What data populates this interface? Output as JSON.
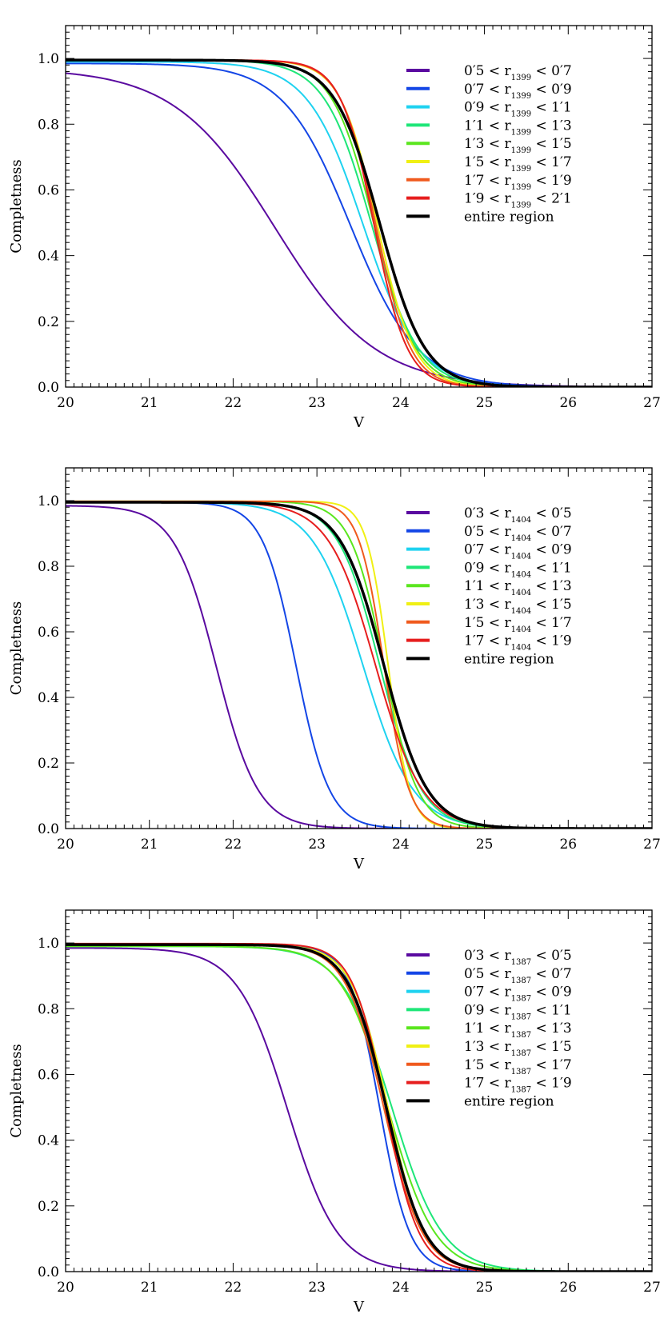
{
  "chart_data": [
    {
      "type": "line",
      "xlabel": "V",
      "ylabel": "Completness",
      "xlim": [
        20,
        27
      ],
      "ylim": [
        0,
        1.1
      ],
      "xticks": [
        "20",
        "21",
        "22",
        "23",
        "24",
        "25",
        "26",
        "27"
      ],
      "yticks": [
        "0.0",
        "0.2",
        "0.4",
        "0.6",
        "0.8",
        "1.0"
      ],
      "legend_position": "top-right",
      "series": [
        {
          "name": "0′5 < r1399 < 0′7",
          "pre": "0′5 < r",
          "sub": "1399",
          "post": "< 0′7",
          "color": "#5a0aa0",
          "width": 2,
          "v50": 22.5,
          "sigma": 0.6,
          "top": 0.97,
          "bottom": 0.0
        },
        {
          "name": "0′7 < r1399 < 0′9",
          "pre": "0′7 < r",
          "sub": "1399",
          "post": "< 0′9",
          "color": "#1446e6",
          "width": 2,
          "v50": 23.4,
          "sigma": 0.4,
          "top": 0.985,
          "bottom": 0.0
        },
        {
          "name": "0′9 < r1399 < 1′1",
          "pre": "0′9 < r",
          "sub": "1399",
          "post": "< 1′1",
          "color": "#1ed2f0",
          "width": 2,
          "v50": 23.55,
          "sigma": 0.33,
          "top": 0.99,
          "bottom": 0.0
        },
        {
          "name": "1′1 < r1399 < 1′3",
          "pre": "1′1 < r",
          "sub": "1399",
          "post": "< 1′3",
          "color": "#1ee678",
          "width": 2,
          "v50": 23.65,
          "sigma": 0.28,
          "top": 0.995,
          "bottom": 0.0
        },
        {
          "name": "1′3 < r1399 < 1′5",
          "pre": "1′3 < r",
          "sub": "1399",
          "post": "< 1′5",
          "color": "#5ae61e",
          "width": 2,
          "v50": 23.68,
          "sigma": 0.25,
          "top": 0.995,
          "bottom": 0.0
        },
        {
          "name": "1′5 < r1399 < 1′7",
          "pre": "1′5 < r",
          "sub": "1399",
          "post": "< 1′7",
          "color": "#f0f014",
          "width": 2,
          "v50": 23.72,
          "sigma": 0.22,
          "top": 0.995,
          "bottom": 0.0
        },
        {
          "name": "1′7 < r1399 < 1′9",
          "pre": "1′7 < r",
          "sub": "1399",
          "post": "< 1′9",
          "color": "#f05a1e",
          "width": 2,
          "v50": 23.7,
          "sigma": 0.21,
          "top": 0.995,
          "bottom": 0.0
        },
        {
          "name": "1′9 < r1399 < 2′1",
          "pre": "1′9 < r",
          "sub": "1399",
          "post": "< 2′1",
          "color": "#e61e1e",
          "width": 2,
          "v50": 23.68,
          "sigma": 0.2,
          "top": 0.995,
          "bottom": 0.0
        },
        {
          "name": "entire region",
          "pre": "entire region",
          "sub": "",
          "post": "",
          "color": "#000000",
          "width": 3.5,
          "v50": 23.75,
          "sigma": 0.27,
          "top": 0.995,
          "bottom": 0.0
        }
      ]
    },
    {
      "type": "line",
      "xlabel": "V",
      "ylabel": "Completness",
      "xlim": [
        20,
        27
      ],
      "ylim": [
        0,
        1.1
      ],
      "xticks": [
        "20",
        "21",
        "22",
        "23",
        "24",
        "25",
        "26",
        "27"
      ],
      "yticks": [
        "0.0",
        "0.2",
        "0.4",
        "0.6",
        "0.8",
        "1.0"
      ],
      "legend_position": "top-right",
      "series": [
        {
          "name": "0′3 < r1404 < 0′5",
          "pre": "0′3 < r",
          "sub": "1404",
          "post": "< 0′5",
          "color": "#5a0aa0",
          "width": 2,
          "v50": 21.8,
          "sigma": 0.25,
          "top": 0.985,
          "bottom": 0.0
        },
        {
          "name": "0′5 < r1404 < 0′7",
          "pre": "0′5 < r",
          "sub": "1404",
          "post": "< 0′7",
          "color": "#1446e6",
          "width": 2,
          "v50": 22.75,
          "sigma": 0.2,
          "top": 0.995,
          "bottom": 0.0
        },
        {
          "name": "0′7 < r1404 < 0′9",
          "pre": "0′7 < r",
          "sub": "1404",
          "post": "< 0′9",
          "color": "#1ed2f0",
          "width": 2,
          "v50": 23.55,
          "sigma": 0.3,
          "top": 0.995,
          "bottom": 0.0
        },
        {
          "name": "0′9 < r1404 < 1′1",
          "pre": "0′9 < r",
          "sub": "1404",
          "post": "< 1′1",
          "color": "#1ee678",
          "width": 2,
          "v50": 23.75,
          "sigma": 0.25,
          "top": 0.995,
          "bottom": 0.0
        },
        {
          "name": "1′1 < r1404 < 1′3",
          "pre": "1′1 < r",
          "sub": "1404",
          "post": "< 1′3",
          "color": "#5ae61e",
          "width": 2,
          "v50": 23.8,
          "sigma": 0.2,
          "top": 0.998,
          "bottom": 0.0
        },
        {
          "name": "1′3 < r1404 < 1′5",
          "pre": "1′3 < r",
          "sub": "1404",
          "post": "< 1′5",
          "color": "#f0f014",
          "width": 2,
          "v50": 23.85,
          "sigma": 0.13,
          "top": 0.998,
          "bottom": 0.0
        },
        {
          "name": "1′5 < r1404 < 1′7",
          "pre": "1′5 < r",
          "sub": "1404",
          "post": "< 1′7",
          "color": "#f05a1e",
          "width": 2,
          "v50": 23.8,
          "sigma": 0.15,
          "top": 0.998,
          "bottom": 0.0
        },
        {
          "name": "1′7 < r1404 < 1′9",
          "pre": "1′7 < r",
          "sub": "1404",
          "post": "< 1′9",
          "color": "#e61e1e",
          "width": 2,
          "v50": 23.7,
          "sigma": 0.28,
          "top": 0.995,
          "bottom": 0.0
        },
        {
          "name": "entire region",
          "pre": "entire region",
          "sub": "",
          "post": "",
          "color": "#000000",
          "width": 3.5,
          "v50": 23.8,
          "sigma": 0.26,
          "top": 0.995,
          "bottom": 0.0
        }
      ]
    },
    {
      "type": "line",
      "xlabel": "V",
      "ylabel": "Completness",
      "xlim": [
        20,
        27
      ],
      "ylim": [
        0,
        1.1
      ],
      "xticks": [
        "20",
        "21",
        "22",
        "23",
        "24",
        "25",
        "26",
        "27"
      ],
      "yticks": [
        "0.0",
        "0.2",
        "0.4",
        "0.6",
        "0.8",
        "1.0"
      ],
      "legend_position": "top-right",
      "series": [
        {
          "name": "0′3 < r1387 < 0′5",
          "pre": "0′3 < r",
          "sub": "1387",
          "post": "< 0′5",
          "color": "#5a0aa0",
          "width": 2,
          "v50": 22.65,
          "sigma": 0.3,
          "top": 0.985,
          "bottom": 0.0
        },
        {
          "name": "0′5 < r1387 < 0′7",
          "pre": "0′5 < r",
          "sub": "1387",
          "post": "< 0′7",
          "color": "#1446e6",
          "width": 2,
          "v50": 23.75,
          "sigma": 0.18,
          "top": 0.995,
          "bottom": 0.0
        },
        {
          "name": "0′7 < r1387 < 0′9",
          "pre": "0′7 < r",
          "sub": "1387",
          "post": "< 0′9",
          "color": "#1ed2f0",
          "width": 2,
          "v50": 23.85,
          "sigma": 0.22,
          "top": 0.995,
          "bottom": 0.0
        },
        {
          "name": "0′9 < r1387 < 1′1",
          "pre": "0′9 < r",
          "sub": "1387",
          "post": "< 1′1",
          "color": "#1ee678",
          "width": 2,
          "v50": 23.9,
          "sigma": 0.3,
          "top": 0.99,
          "bottom": 0.0
        },
        {
          "name": "1′1 < r1387 < 1′3",
          "pre": "1′1 < r",
          "sub": "1387",
          "post": "< 1′3",
          "color": "#5ae61e",
          "width": 2,
          "v50": 23.85,
          "sigma": 0.28,
          "top": 0.99,
          "bottom": 0.0
        },
        {
          "name": "1′3 < r1387 < 1′5",
          "pre": "1′3 < r",
          "sub": "1387",
          "post": "< 1′5",
          "color": "#f0f014",
          "width": 2,
          "v50": 23.85,
          "sigma": 0.22,
          "top": 0.995,
          "bottom": 0.0
        },
        {
          "name": "1′5 < r1387 < 1′7",
          "pre": "1′5 < r",
          "sub": "1387",
          "post": "< 1′7",
          "color": "#f05a1e",
          "width": 2,
          "v50": 23.8,
          "sigma": 0.23,
          "top": 0.995,
          "bottom": 0.0
        },
        {
          "name": "1′7 < r1387 < 1′9",
          "pre": "1′7 < r",
          "sub": "1387",
          "post": "< 1′9",
          "color": "#e61e1e",
          "width": 2,
          "v50": 23.82,
          "sigma": 0.2,
          "top": 0.998,
          "bottom": 0.0
        },
        {
          "name": "entire region",
          "pre": "entire region",
          "sub": "",
          "post": "",
          "color": "#000000",
          "width": 3.5,
          "v50": 23.83,
          "sigma": 0.23,
          "top": 0.995,
          "bottom": 0.0
        }
      ]
    }
  ]
}
